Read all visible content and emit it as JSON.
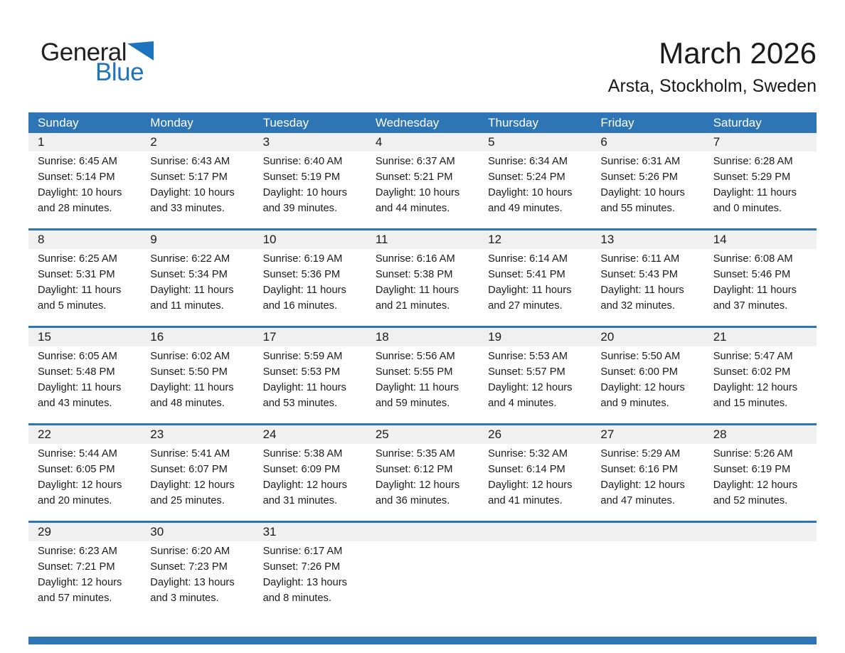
{
  "colors": {
    "header_blue": "#2E75B6",
    "separator_blue": "#2E75B6",
    "date_band_gray": "#F0F0F0",
    "logo_blue": "#1E73BE",
    "text": "#1B1B1B"
  },
  "logo": {
    "part1": "General",
    "part2": "Blue",
    "icon": "blue-triangle-icon"
  },
  "header": {
    "title": "March 2026",
    "subtitle": "Arsta, Stockholm, Sweden"
  },
  "weekdays": [
    "Sunday",
    "Monday",
    "Tuesday",
    "Wednesday",
    "Thursday",
    "Friday",
    "Saturday"
  ],
  "weeks": [
    [
      {
        "date": "1",
        "sunrise": "Sunrise: 6:45 AM",
        "sunset": "Sunset: 5:14 PM",
        "daylight_line1": "Daylight: 10 hours",
        "daylight_line2": "and 28 minutes."
      },
      {
        "date": "2",
        "sunrise": "Sunrise: 6:43 AM",
        "sunset": "Sunset: 5:17 PM",
        "daylight_line1": "Daylight: 10 hours",
        "daylight_line2": "and 33 minutes."
      },
      {
        "date": "3",
        "sunrise": "Sunrise: 6:40 AM",
        "sunset": "Sunset: 5:19 PM",
        "daylight_line1": "Daylight: 10 hours",
        "daylight_line2": "and 39 minutes."
      },
      {
        "date": "4",
        "sunrise": "Sunrise: 6:37 AM",
        "sunset": "Sunset: 5:21 PM",
        "daylight_line1": "Daylight: 10 hours",
        "daylight_line2": "and 44 minutes."
      },
      {
        "date": "5",
        "sunrise": "Sunrise: 6:34 AM",
        "sunset": "Sunset: 5:24 PM",
        "daylight_line1": "Daylight: 10 hours",
        "daylight_line2": "and 49 minutes."
      },
      {
        "date": "6",
        "sunrise": "Sunrise: 6:31 AM",
        "sunset": "Sunset: 5:26 PM",
        "daylight_line1": "Daylight: 10 hours",
        "daylight_line2": "and 55 minutes."
      },
      {
        "date": "7",
        "sunrise": "Sunrise: 6:28 AM",
        "sunset": "Sunset: 5:29 PM",
        "daylight_line1": "Daylight: 11 hours",
        "daylight_line2": "and 0 minutes."
      }
    ],
    [
      {
        "date": "8",
        "sunrise": "Sunrise: 6:25 AM",
        "sunset": "Sunset: 5:31 PM",
        "daylight_line1": "Daylight: 11 hours",
        "daylight_line2": "and 5 minutes."
      },
      {
        "date": "9",
        "sunrise": "Sunrise: 6:22 AM",
        "sunset": "Sunset: 5:34 PM",
        "daylight_line1": "Daylight: 11 hours",
        "daylight_line2": "and 11 minutes."
      },
      {
        "date": "10",
        "sunrise": "Sunrise: 6:19 AM",
        "sunset": "Sunset: 5:36 PM",
        "daylight_line1": "Daylight: 11 hours",
        "daylight_line2": "and 16 minutes."
      },
      {
        "date": "11",
        "sunrise": "Sunrise: 6:16 AM",
        "sunset": "Sunset: 5:38 PM",
        "daylight_line1": "Daylight: 11 hours",
        "daylight_line2": "and 21 minutes."
      },
      {
        "date": "12",
        "sunrise": "Sunrise: 6:14 AM",
        "sunset": "Sunset: 5:41 PM",
        "daylight_line1": "Daylight: 11 hours",
        "daylight_line2": "and 27 minutes."
      },
      {
        "date": "13",
        "sunrise": "Sunrise: 6:11 AM",
        "sunset": "Sunset: 5:43 PM",
        "daylight_line1": "Daylight: 11 hours",
        "daylight_line2": "and 32 minutes."
      },
      {
        "date": "14",
        "sunrise": "Sunrise: 6:08 AM",
        "sunset": "Sunset: 5:46 PM",
        "daylight_line1": "Daylight: 11 hours",
        "daylight_line2": "and 37 minutes."
      }
    ],
    [
      {
        "date": "15",
        "sunrise": "Sunrise: 6:05 AM",
        "sunset": "Sunset: 5:48 PM",
        "daylight_line1": "Daylight: 11 hours",
        "daylight_line2": "and 43 minutes."
      },
      {
        "date": "16",
        "sunrise": "Sunrise: 6:02 AM",
        "sunset": "Sunset: 5:50 PM",
        "daylight_line1": "Daylight: 11 hours",
        "daylight_line2": "and 48 minutes."
      },
      {
        "date": "17",
        "sunrise": "Sunrise: 5:59 AM",
        "sunset": "Sunset: 5:53 PM",
        "daylight_line1": "Daylight: 11 hours",
        "daylight_line2": "and 53 minutes."
      },
      {
        "date": "18",
        "sunrise": "Sunrise: 5:56 AM",
        "sunset": "Sunset: 5:55 PM",
        "daylight_line1": "Daylight: 11 hours",
        "daylight_line2": "and 59 minutes."
      },
      {
        "date": "19",
        "sunrise": "Sunrise: 5:53 AM",
        "sunset": "Sunset: 5:57 PM",
        "daylight_line1": "Daylight: 12 hours",
        "daylight_line2": "and 4 minutes."
      },
      {
        "date": "20",
        "sunrise": "Sunrise: 5:50 AM",
        "sunset": "Sunset: 6:00 PM",
        "daylight_line1": "Daylight: 12 hours",
        "daylight_line2": "and 9 minutes."
      },
      {
        "date": "21",
        "sunrise": "Sunrise: 5:47 AM",
        "sunset": "Sunset: 6:02 PM",
        "daylight_line1": "Daylight: 12 hours",
        "daylight_line2": "and 15 minutes."
      }
    ],
    [
      {
        "date": "22",
        "sunrise": "Sunrise: 5:44 AM",
        "sunset": "Sunset: 6:05 PM",
        "daylight_line1": "Daylight: 12 hours",
        "daylight_line2": "and 20 minutes."
      },
      {
        "date": "23",
        "sunrise": "Sunrise: 5:41 AM",
        "sunset": "Sunset: 6:07 PM",
        "daylight_line1": "Daylight: 12 hours",
        "daylight_line2": "and 25 minutes."
      },
      {
        "date": "24",
        "sunrise": "Sunrise: 5:38 AM",
        "sunset": "Sunset: 6:09 PM",
        "daylight_line1": "Daylight: 12 hours",
        "daylight_line2": "and 31 minutes."
      },
      {
        "date": "25",
        "sunrise": "Sunrise: 5:35 AM",
        "sunset": "Sunset: 6:12 PM",
        "daylight_line1": "Daylight: 12 hours",
        "daylight_line2": "and 36 minutes."
      },
      {
        "date": "26",
        "sunrise": "Sunrise: 5:32 AM",
        "sunset": "Sunset: 6:14 PM",
        "daylight_line1": "Daylight: 12 hours",
        "daylight_line2": "and 41 minutes."
      },
      {
        "date": "27",
        "sunrise": "Sunrise: 5:29 AM",
        "sunset": "Sunset: 6:16 PM",
        "daylight_line1": "Daylight: 12 hours",
        "daylight_line2": "and 47 minutes."
      },
      {
        "date": "28",
        "sunrise": "Sunrise: 5:26 AM",
        "sunset": "Sunset: 6:19 PM",
        "daylight_line1": "Daylight: 12 hours",
        "daylight_line2": "and 52 minutes."
      }
    ],
    [
      {
        "date": "29",
        "sunrise": "Sunrise: 6:23 AM",
        "sunset": "Sunset: 7:21 PM",
        "daylight_line1": "Daylight: 12 hours",
        "daylight_line2": "and 57 minutes."
      },
      {
        "date": "30",
        "sunrise": "Sunrise: 6:20 AM",
        "sunset": "Sunset: 7:23 PM",
        "daylight_line1": "Daylight: 13 hours",
        "daylight_line2": "and 3 minutes."
      },
      {
        "date": "31",
        "sunrise": "Sunrise: 6:17 AM",
        "sunset": "Sunset: 7:26 PM",
        "daylight_line1": "Daylight: 13 hours",
        "daylight_line2": "and 8 minutes."
      },
      null,
      null,
      null,
      null
    ]
  ]
}
